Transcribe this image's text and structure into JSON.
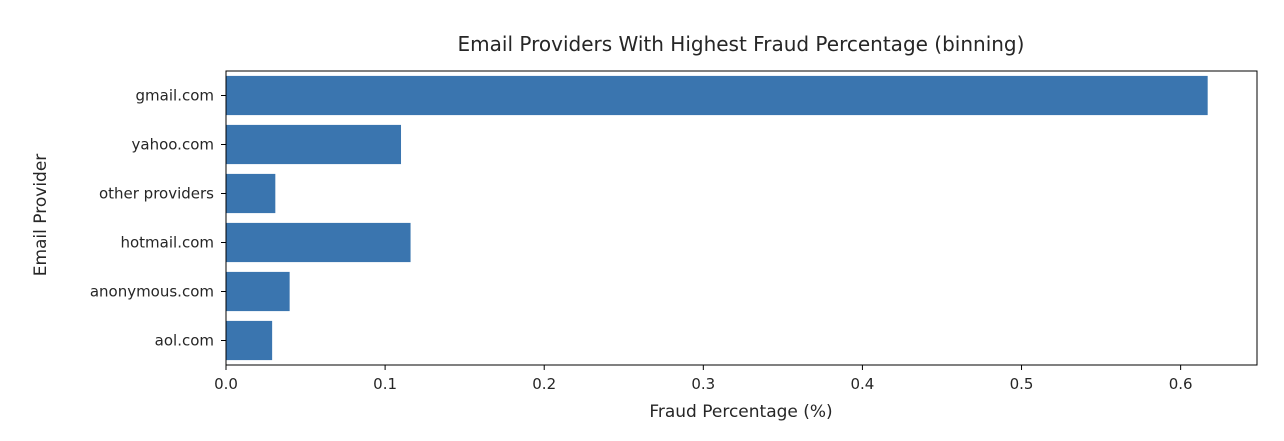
{
  "chart_data": {
    "type": "bar",
    "orientation": "horizontal",
    "title": "Email Providers With Highest Fraud Percentage (binning)",
    "xlabel": "Fraud Percentage (%)",
    "ylabel": "Email Provider",
    "categories": [
      "gmail.com",
      "yahoo.com",
      "other providers",
      "hotmail.com",
      "anonymous.com",
      "aol.com"
    ],
    "values": [
      0.617,
      0.11,
      0.031,
      0.116,
      0.04,
      0.029
    ],
    "xlim": [
      0,
      0.648
    ],
    "xticks": [
      0.0,
      0.1,
      0.2,
      0.3,
      0.4,
      0.5,
      0.6
    ],
    "xtick_labels": [
      "0.0",
      "0.1",
      "0.2",
      "0.3",
      "0.4",
      "0.5",
      "0.6"
    ],
    "bar_color": "#3a75af",
    "grid": false,
    "legend": "none"
  }
}
